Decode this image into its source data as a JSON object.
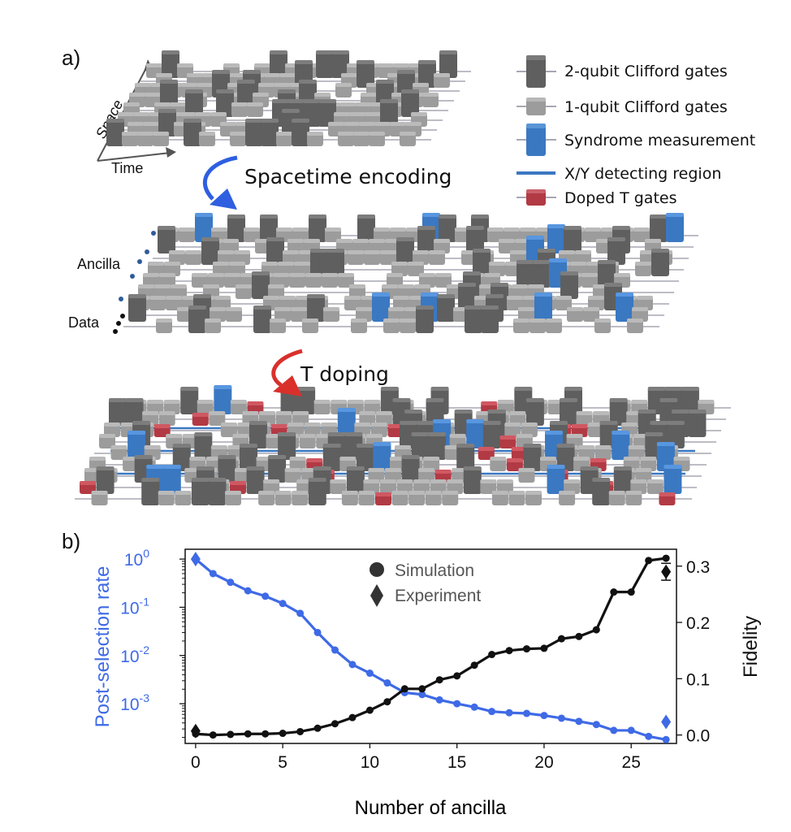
{
  "panel_a": {
    "label": "a)",
    "axes_labels": {
      "space": "Space",
      "time": "Time"
    },
    "legend": [
      {
        "key": "two_qubit",
        "label": "2-qubit Clifford gates",
        "color": "#5f5f5f"
      },
      {
        "key": "one_qubit",
        "label": "1-qubit Clifford gates",
        "color": "#9c9c9c"
      },
      {
        "key": "syndrome",
        "label": "Syndrome measurement",
        "color": "#3a78c2"
      },
      {
        "key": "detecting",
        "label": "X/Y detecting region",
        "color": "#3a78c2"
      },
      {
        "key": "t_gate",
        "label": "Doped T gates",
        "color": "#b23a44"
      }
    ],
    "arrow1_label": "Spacetime encoding",
    "arrow2_label": "T doping",
    "ancilla_label": "Ancilla",
    "data_label": "Data",
    "colors": {
      "wire": "#a7a7b4",
      "arrow1": "#2f5fe0",
      "arrow2": "#d9302c"
    }
  },
  "panel_b": {
    "label": "b)",
    "legend": {
      "simulation": "Simulation",
      "experiment": "Experiment"
    },
    "x_label": "Number of ancilla",
    "y_left_label": "Post-selection rate",
    "y_right_label": "Fidelity",
    "left_color": "#3f6ae6",
    "right_color": "#111111",
    "x_ticks": [
      "0",
      "5",
      "10",
      "15",
      "20",
      "25"
    ],
    "y_left_ticks": [
      {
        "base": "10",
        "exp": "0"
      },
      {
        "base": "10",
        "exp": "-1"
      },
      {
        "base": "10",
        "exp": "-2"
      },
      {
        "base": "10",
        "exp": "-3"
      }
    ],
    "y_right_ticks": [
      "0.0",
      "0.1",
      "0.2",
      "0.3"
    ]
  },
  "chart_data": {
    "type": "line",
    "xlabel": "Number of ancilla",
    "ylabel": "Post-selection rate",
    "y2label": "Fidelity",
    "xlim": [
      -0.6,
      27.6
    ],
    "ylim": [
      0.00015,
      1.6
    ],
    "y2lim": [
      -0.015,
      0.33
    ],
    "yscale": "log",
    "x": [
      0,
      1,
      2,
      3,
      4,
      5,
      6,
      7,
      8,
      9,
      10,
      11,
      12,
      13,
      14,
      15,
      16,
      17,
      18,
      19,
      20,
      21,
      22,
      23,
      24,
      25,
      26,
      27
    ],
    "series": [
      {
        "name": "Simulation",
        "axis": "left",
        "values": [
          1.0,
          0.5,
          0.33,
          0.22,
          0.17,
          0.12,
          0.075,
          0.03,
          0.013,
          0.0065,
          0.0043,
          0.0027,
          0.0017,
          0.00155,
          0.0012,
          0.001,
          0.00085,
          0.00069,
          0.00065,
          0.00063,
          0.00057,
          0.0005,
          0.00043,
          0.00037,
          0.00028,
          0.00028,
          0.00021,
          0.00018
        ]
      },
      {
        "name": "Simulation",
        "axis": "right",
        "values": [
          0.002,
          0.0,
          0.001,
          0.002,
          0.002,
          0.003,
          0.006,
          0.012,
          0.02,
          0.031,
          0.044,
          0.059,
          0.082,
          0.082,
          0.098,
          0.105,
          0.124,
          0.143,
          0.15,
          0.153,
          0.154,
          0.171,
          0.175,
          0.187,
          0.254,
          0.254,
          0.31,
          0.314
        ]
      },
      {
        "name": "Experiment",
        "axis": "left",
        "x": [
          0,
          27
        ],
        "values": [
          1.0,
          0.00042
        ]
      },
      {
        "name": "Experiment",
        "axis": "right",
        "x": [
          0,
          27
        ],
        "values": [
          0.007,
          0.29
        ],
        "errors": [
          0.0,
          0.015
        ]
      }
    ],
    "legend_position": "top-center",
    "grid": false
  }
}
